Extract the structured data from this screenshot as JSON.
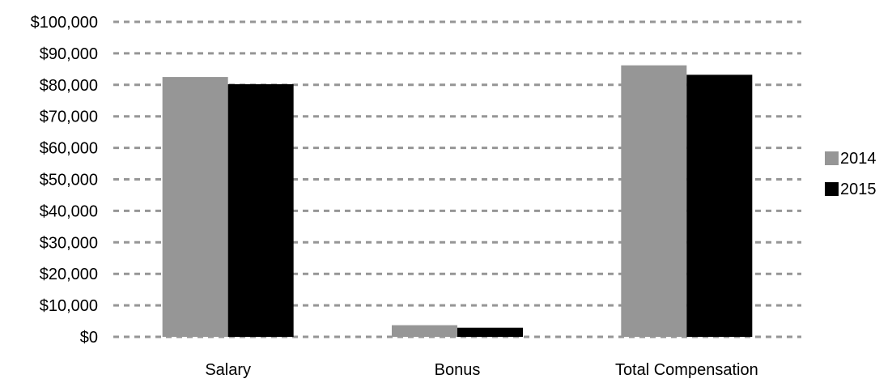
{
  "chart_data": {
    "type": "bar",
    "title": "",
    "xlabel": "",
    "ylabel": "",
    "categories": [
      "Salary",
      "Bonus",
      "Total Compensation"
    ],
    "series": [
      {
        "name": "2014",
        "values": [
          82500,
          3700,
          86200
        ],
        "color": "#969696"
      },
      {
        "name": "2015",
        "values": [
          80200,
          2900,
          83200
        ],
        "color": "#000000"
      }
    ],
    "ylim": [
      0,
      100000
    ],
    "yticks": [
      0,
      10000,
      20000,
      30000,
      40000,
      50000,
      60000,
      70000,
      80000,
      90000,
      100000
    ],
    "ytick_labels": [
      "$0",
      "$10,000",
      "$20,000",
      "$30,000",
      "$40,000",
      "$50,000",
      "$60,000",
      "$70,000",
      "$80,000",
      "$90,000",
      "$100,000"
    ],
    "grid": true,
    "grid_style": "dashed",
    "grid_color": "#969696",
    "legend_position": "right"
  }
}
